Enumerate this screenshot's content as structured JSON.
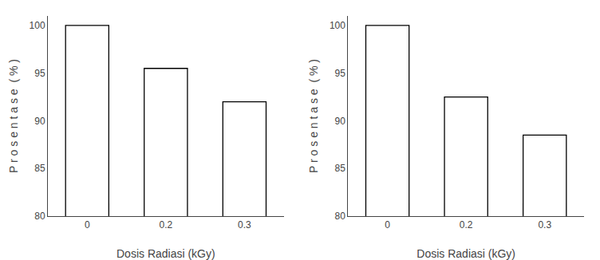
{
  "chart_data": [
    {
      "type": "bar",
      "categories": [
        "0",
        "0.2",
        "0.3"
      ],
      "values": [
        100,
        95.5,
        92
      ],
      "xlabel": "Dosis Radiasi (kGy)",
      "ylabel": "P r o s e n t a s e  ( % )",
      "ylim": [
        80,
        101
      ],
      "yticks": [
        80,
        85,
        90,
        95,
        100
      ],
      "color": "white",
      "grid": false
    },
    {
      "type": "bar",
      "categories": [
        "0",
        "0.2",
        "0.3"
      ],
      "values": [
        100,
        92.5,
        88.5
      ],
      "xlabel": "Dosis Radiasi (kGy)",
      "ylabel": "P r o s e n t a s e  ( % )",
      "ylim": [
        80,
        101
      ],
      "yticks": [
        80,
        85,
        90,
        95,
        100
      ],
      "color": "white",
      "grid": false
    }
  ]
}
